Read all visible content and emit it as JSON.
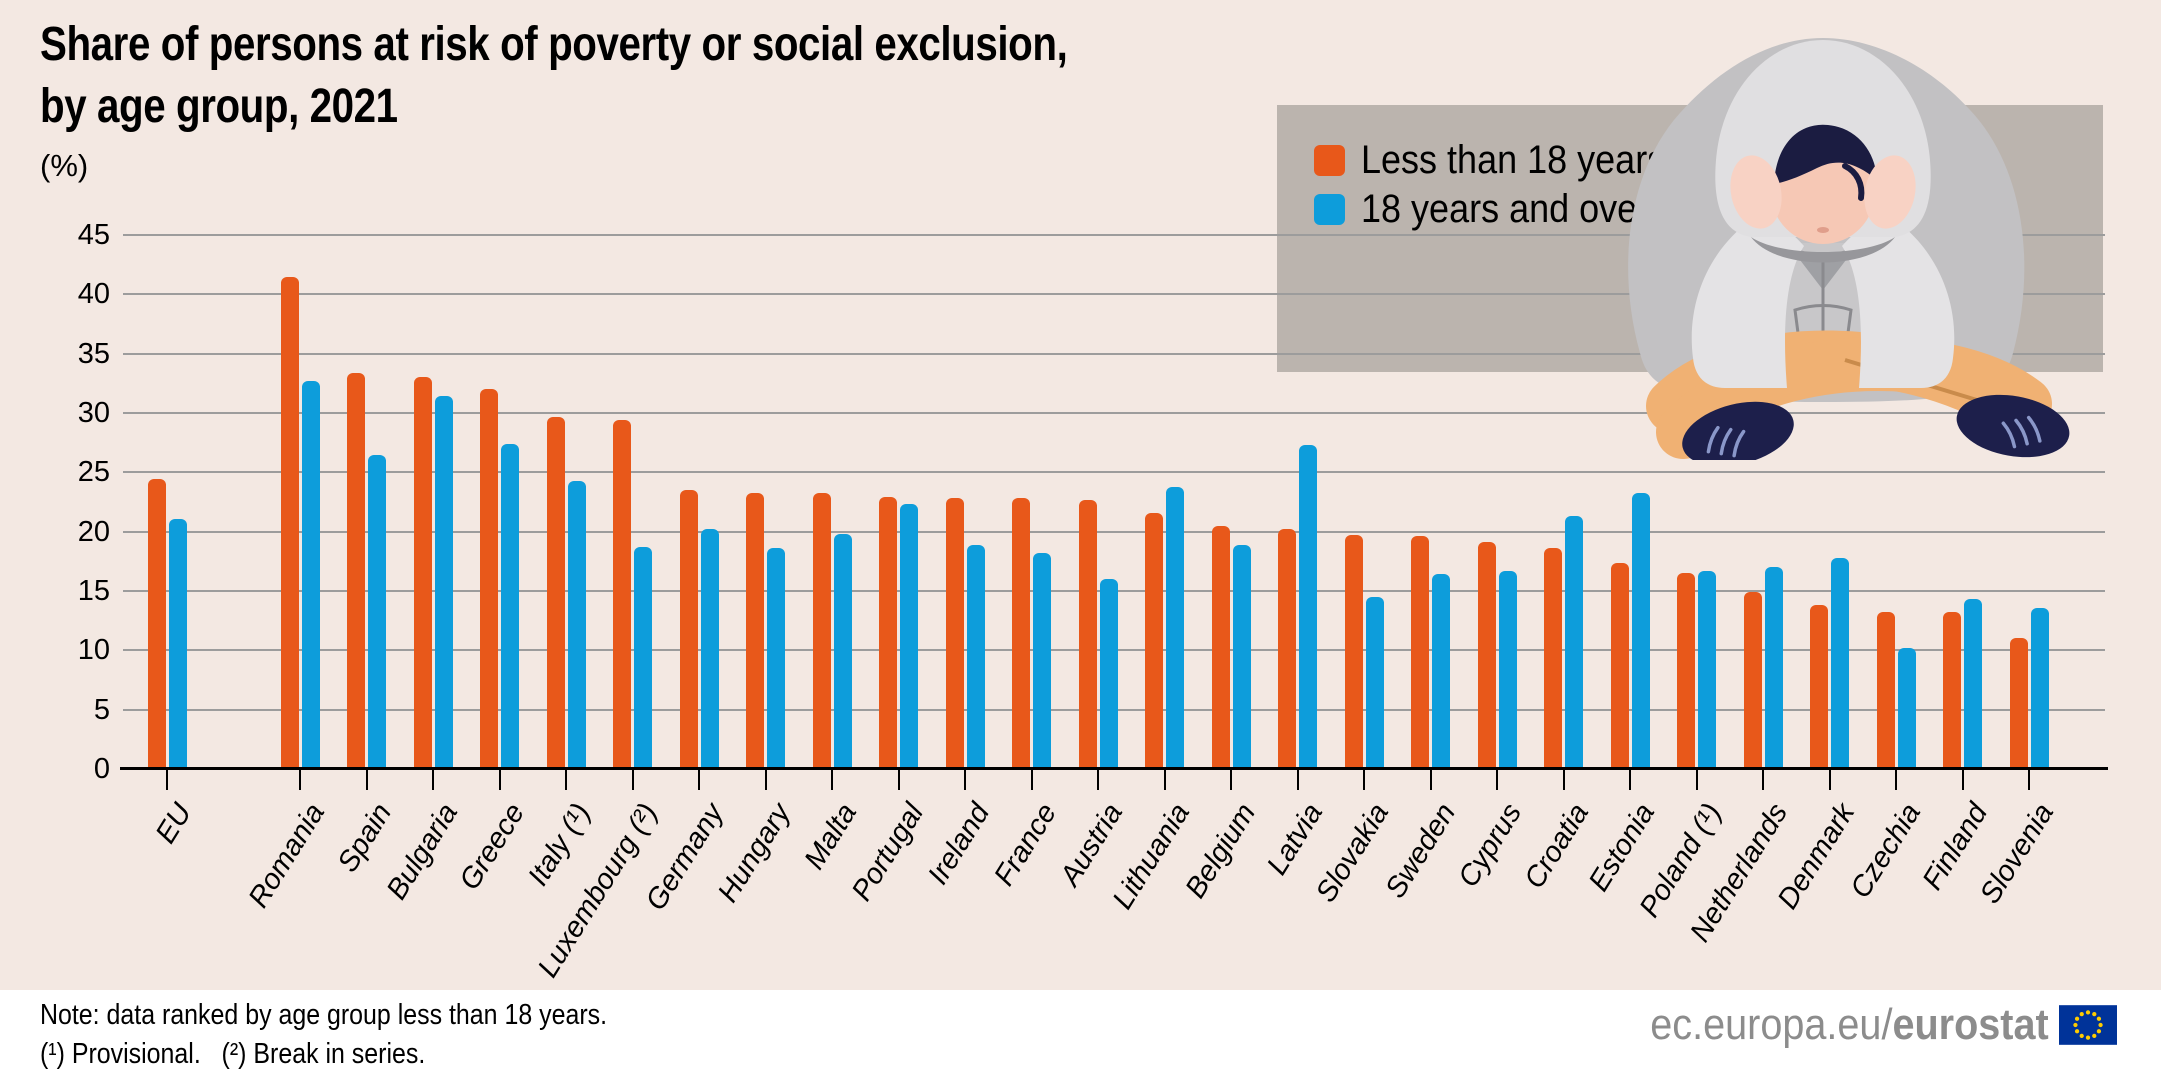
{
  "title": "Share of persons at risk of poverty or social exclusion,\nby age group, 2021",
  "unit": "(%)",
  "legend": {
    "items": [
      {
        "label": "Less than 18 years",
        "color": "#E8581A"
      },
      {
        "label": "18 years and over",
        "color": "#0D9DDB"
      }
    ]
  },
  "chart_data": {
    "type": "bar",
    "title": "Share of persons at risk of poverty or social exclusion, by age group, 2021",
    "unit": "(%)",
    "categories": [
      "EU",
      "Romania",
      "Spain",
      "Bulgaria",
      "Greece",
      "Italy (¹)",
      "Luxembourg (²)",
      "Germany",
      "Hungary",
      "Malta",
      "Portugal",
      "Ireland",
      "France",
      "Austria",
      "Lithuania",
      "Belgium",
      "Latvia",
      "Slovakia",
      "Sweden",
      "Cyprus",
      "Croatia",
      "Estonia",
      "Poland (¹)",
      "Netherlands",
      "Denmark",
      "Czechia",
      "Finland",
      "Slovenia"
    ],
    "series": [
      {
        "name": "Less than 18 years",
        "color": "#E8581A",
        "values": [
          24.4,
          41.5,
          33.4,
          33.0,
          32.0,
          29.7,
          29.4,
          23.5,
          23.3,
          23.3,
          22.9,
          22.8,
          22.8,
          22.7,
          21.6,
          20.5,
          20.2,
          19.7,
          19.6,
          19.1,
          18.6,
          17.4,
          16.5,
          14.9,
          13.8,
          13.2,
          13.2,
          11.0
        ]
      },
      {
        "name": "18 years and over",
        "color": "#0D9DDB",
        "values": [
          21.1,
          32.7,
          26.5,
          31.4,
          27.4,
          24.3,
          18.7,
          20.2,
          18.6,
          19.8,
          22.3,
          18.9,
          18.2,
          16.0,
          23.8,
          18.9,
          27.3,
          14.5,
          16.4,
          16.7,
          21.3,
          23.3,
          16.7,
          17.0,
          17.8,
          10.2,
          14.3,
          13.6
        ]
      }
    ],
    "ylim": [
      0,
      45
    ],
    "ytick_step": 5,
    "grid": true,
    "legend_position": "top-right",
    "ranking_note": "data ranked by age group less than 18 years"
  },
  "footer": {
    "note": "Note: data ranked by age group less than 18 years.",
    "footnotes": "(¹) Provisional.   (²) Break in series.",
    "brand_regular": "ec.europa.eu/",
    "brand_bold": "eurostat"
  },
  "colors": {
    "background": "#F3E8E2",
    "legend_box": "#BBB4AE",
    "gridline": "#9C9C9C",
    "axis": "#000000"
  }
}
